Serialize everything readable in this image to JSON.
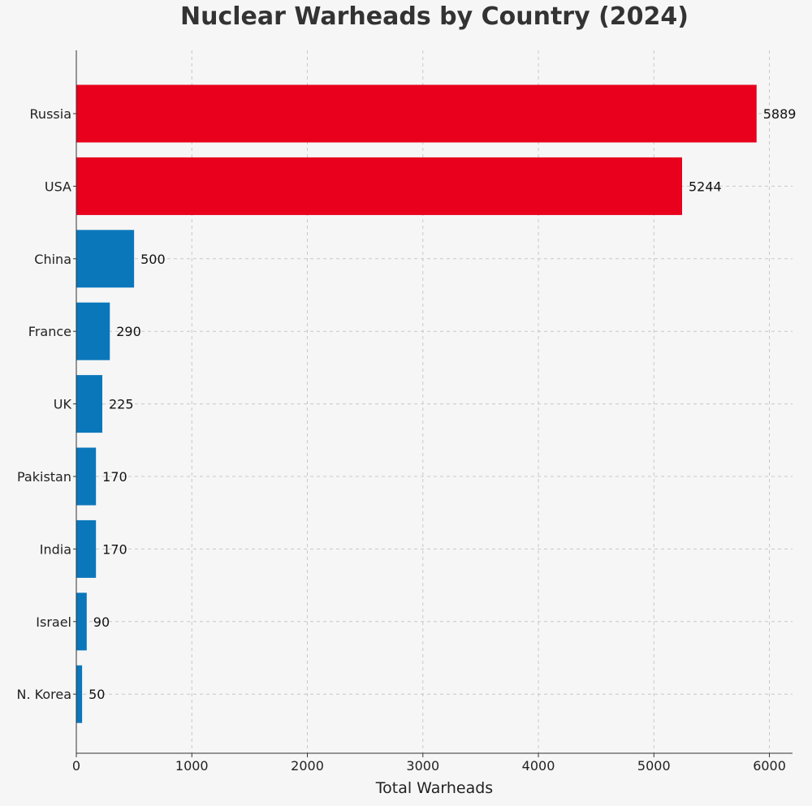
{
  "chart_data": {
    "type": "bar",
    "orientation": "horizontal",
    "title": "Nuclear Warheads by Country (2024)",
    "xlabel": "Total Warheads",
    "ylabel": "",
    "categories": [
      "Russia",
      "USA",
      "China",
      "France",
      "UK",
      "Pakistan",
      "India",
      "Israel",
      "N. Korea"
    ],
    "values": [
      5889,
      5244,
      500,
      290,
      225,
      170,
      170,
      90,
      50
    ],
    "data_labels": [
      "5889",
      "5244",
      "500",
      "290",
      "225",
      "170",
      "170",
      "90",
      "50"
    ],
    "bar_colors": [
      "#e8001c",
      "#e8001c",
      "#0a77bb",
      "#0a77bb",
      "#0a77bb",
      "#0a77bb",
      "#0a77bb",
      "#0a77bb",
      "#0a77bb"
    ],
    "xlim": [
      0,
      6200
    ],
    "xticks": [
      0,
      1000,
      2000,
      3000,
      4000,
      5000,
      6000
    ],
    "xtick_labels": [
      "0",
      "1000",
      "2000",
      "3000",
      "4000",
      "5000",
      "6000"
    ],
    "grid": true,
    "legend": "none"
  }
}
